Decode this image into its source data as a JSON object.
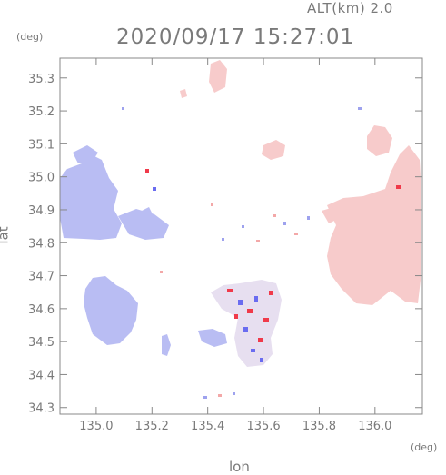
{
  "header": {
    "altitude_label": "ALT(km)  2.0",
    "timestamp": "2020/09/17 15:27:01"
  },
  "axes": {
    "x_label": "lon",
    "x_unit": "(deg)",
    "y_label": "lat",
    "y_unit": "(deg)",
    "x_ticks": [
      "135.0",
      "135.2",
      "135.4",
      "135.6",
      "135.8",
      "136.0"
    ],
    "y_ticks": [
      "35.3",
      "35.2",
      "35.1",
      "35.0",
      "34.9",
      "34.8",
      "34.7",
      "34.6",
      "34.5",
      "34.4",
      "34.3"
    ]
  },
  "map": {
    "lon_range": [
      134.87,
      136.17
    ],
    "lat_range": [
      34.28,
      35.36
    ],
    "colors": {
      "approaching": "#b8bcf2",
      "approaching_strong": "#6a6cf0",
      "receding": "#f6c6c6",
      "receding_strong": "#f03a4a",
      "frame": "#888888"
    }
  }
}
